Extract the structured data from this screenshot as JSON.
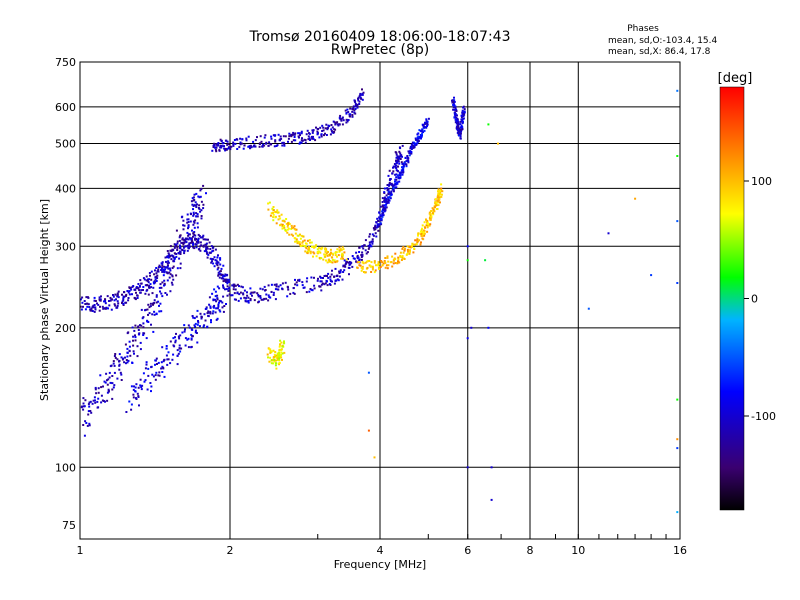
{
  "chart_data": {
    "type": "scatter",
    "title": "Tromsø 20160409 18:06:00-18:07:43",
    "subtitle": "RwPretec (8p)",
    "xlabel": "Frequency [MHz]",
    "ylabel": "Stationary phase Virtual Height [km]",
    "x_scale": "log",
    "y_scale": "log",
    "xlim": [
      1,
      16
    ],
    "ylim": [
      70,
      750
    ],
    "x_ticks": [
      1,
      2,
      4,
      6,
      8,
      10,
      16
    ],
    "y_ticks": [
      75,
      100,
      200,
      300,
      400,
      500,
      600,
      750
    ],
    "grid": true,
    "phases_stats": {
      "title": "Phases",
      "o_line": "mean, sd,O:-103.4, 15.4",
      "x_line": "mean, sd,X:  86.4, 17.8"
    },
    "colorbar": {
      "label": "[deg]",
      "range": [
        -180,
        180
      ],
      "ticks": [
        100,
        0,
        -100
      ],
      "colors": [
        "#000000",
        "#3a0070",
        "#0000ff",
        "#00b4ff",
        "#00ff00",
        "#ffff00",
        "#ff8000",
        "#ff0000"
      ]
    },
    "traces": [
      {
        "name": "",
        "phase": -110,
        "spread": 0.04,
        "points": [
          [
            1.0,
            225
          ],
          [
            1.1,
            225
          ],
          [
            1.2,
            230
          ],
          [
            1.3,
            240
          ],
          [
            1.4,
            255
          ],
          [
            1.5,
            280
          ],
          [
            1.6,
            300
          ],
          [
            1.7,
            310
          ],
          [
            1.8,
            300
          ],
          [
            1.9,
            270
          ],
          [
            2.0,
            240
          ],
          [
            2.2,
            235
          ],
          [
            2.5,
            240
          ],
          [
            3.0,
            250
          ],
          [
            3.3,
            260
          ],
          [
            3.6,
            280
          ],
          [
            3.9,
            320
          ],
          [
            4.1,
            380
          ],
          [
            4.3,
            450
          ],
          [
            4.4,
            480
          ]
        ]
      },
      {
        "name": "",
        "phase": -110,
        "spread": 0.08,
        "points": [
          [
            1.0,
            125
          ],
          [
            1.1,
            145
          ],
          [
            1.2,
            165
          ],
          [
            1.3,
            190
          ],
          [
            1.4,
            220
          ],
          [
            1.5,
            260
          ],
          [
            1.6,
            310
          ],
          [
            1.7,
            350
          ],
          [
            1.75,
            380
          ]
        ]
      },
      {
        "name": "",
        "phase": -100,
        "spread": 0.07,
        "points": [
          [
            1.25,
            140
          ],
          [
            1.4,
            160
          ],
          [
            1.55,
            180
          ],
          [
            1.7,
            200
          ],
          [
            1.85,
            220
          ],
          [
            1.95,
            240
          ]
        ]
      },
      {
        "name": "",
        "phase": -110,
        "spread": 0.03,
        "points": [
          [
            1.85,
            490
          ],
          [
            2.0,
            500
          ],
          [
            2.3,
            505
          ],
          [
            2.6,
            510
          ],
          [
            2.9,
            520
          ],
          [
            3.2,
            540
          ],
          [
            3.5,
            580
          ],
          [
            3.7,
            640
          ]
        ]
      },
      {
        "name": "",
        "phase": 100,
        "spread": 0.03,
        "points": [
          [
            3.6,
            270
          ],
          [
            4.0,
            272
          ],
          [
            4.4,
            285
          ],
          [
            4.8,
            310
          ],
          [
            5.0,
            340
          ],
          [
            5.2,
            370
          ],
          [
            5.3,
            400
          ]
        ]
      },
      {
        "name": "",
        "phase": 90,
        "spread": 0.035,
        "points": [
          [
            2.4,
            360
          ],
          [
            2.6,
            330
          ],
          [
            2.8,
            305
          ],
          [
            3.0,
            290
          ],
          [
            3.2,
            285
          ],
          [
            3.4,
            290
          ]
        ]
      },
      {
        "name": "",
        "phase": -90,
        "spread": 0.02,
        "points": [
          [
            4.0,
            340
          ],
          [
            4.2,
            390
          ],
          [
            4.4,
            430
          ],
          [
            4.6,
            480
          ],
          [
            4.8,
            520
          ],
          [
            5.0,
            560
          ]
        ]
      },
      {
        "name": "",
        "phase": 80,
        "spread": 0.04,
        "points": [
          [
            2.4,
            175
          ],
          [
            2.5,
            170
          ],
          [
            2.55,
            185
          ]
        ]
      },
      {
        "name": "",
        "phase": -100,
        "spread": 0.02,
        "points": [
          [
            5.6,
            620
          ],
          [
            5.7,
            560
          ],
          [
            5.8,
            520
          ],
          [
            5.9,
            600
          ]
        ]
      }
    ],
    "scattered_points": [
      {
        "x": 6.0,
        "y": 300,
        "phase": -80
      },
      {
        "x": 6.0,
        "y": 280,
        "phase": 20
      },
      {
        "x": 6.1,
        "y": 200,
        "phase": -100
      },
      {
        "x": 6.0,
        "y": 190,
        "phase": -90
      },
      {
        "x": 6.0,
        "y": 100,
        "phase": -100
      },
      {
        "x": 6.5,
        "y": 280,
        "phase": 10
      },
      {
        "x": 6.6,
        "y": 200,
        "phase": -80
      },
      {
        "x": 6.7,
        "y": 100,
        "phase": -100
      },
      {
        "x": 6.7,
        "y": 85,
        "phase": -100
      },
      {
        "x": 6.6,
        "y": 550,
        "phase": 20
      },
      {
        "x": 6.9,
        "y": 500,
        "phase": 100
      },
      {
        "x": 3.8,
        "y": 160,
        "phase": -50
      },
      {
        "x": 3.8,
        "y": 120,
        "phase": 140
      },
      {
        "x": 3.9,
        "y": 105,
        "phase": 100
      },
      {
        "x": 10.5,
        "y": 220,
        "phase": -50
      },
      {
        "x": 11.5,
        "y": 320,
        "phase": -100
      },
      {
        "x": 13.0,
        "y": 380,
        "phase": 110
      },
      {
        "x": 14.0,
        "y": 260,
        "phase": -60
      },
      {
        "x": 15.8,
        "y": 650,
        "phase": -40
      },
      {
        "x": 15.8,
        "y": 470,
        "phase": 20
      },
      {
        "x": 15.8,
        "y": 340,
        "phase": -50
      },
      {
        "x": 15.8,
        "y": 250,
        "phase": -60
      },
      {
        "x": 15.8,
        "y": 140,
        "phase": 20
      },
      {
        "x": 15.8,
        "y": 115,
        "phase": 120
      },
      {
        "x": 15.8,
        "y": 110,
        "phase": -60
      },
      {
        "x": 15.8,
        "y": 80,
        "phase": -20
      }
    ]
  }
}
